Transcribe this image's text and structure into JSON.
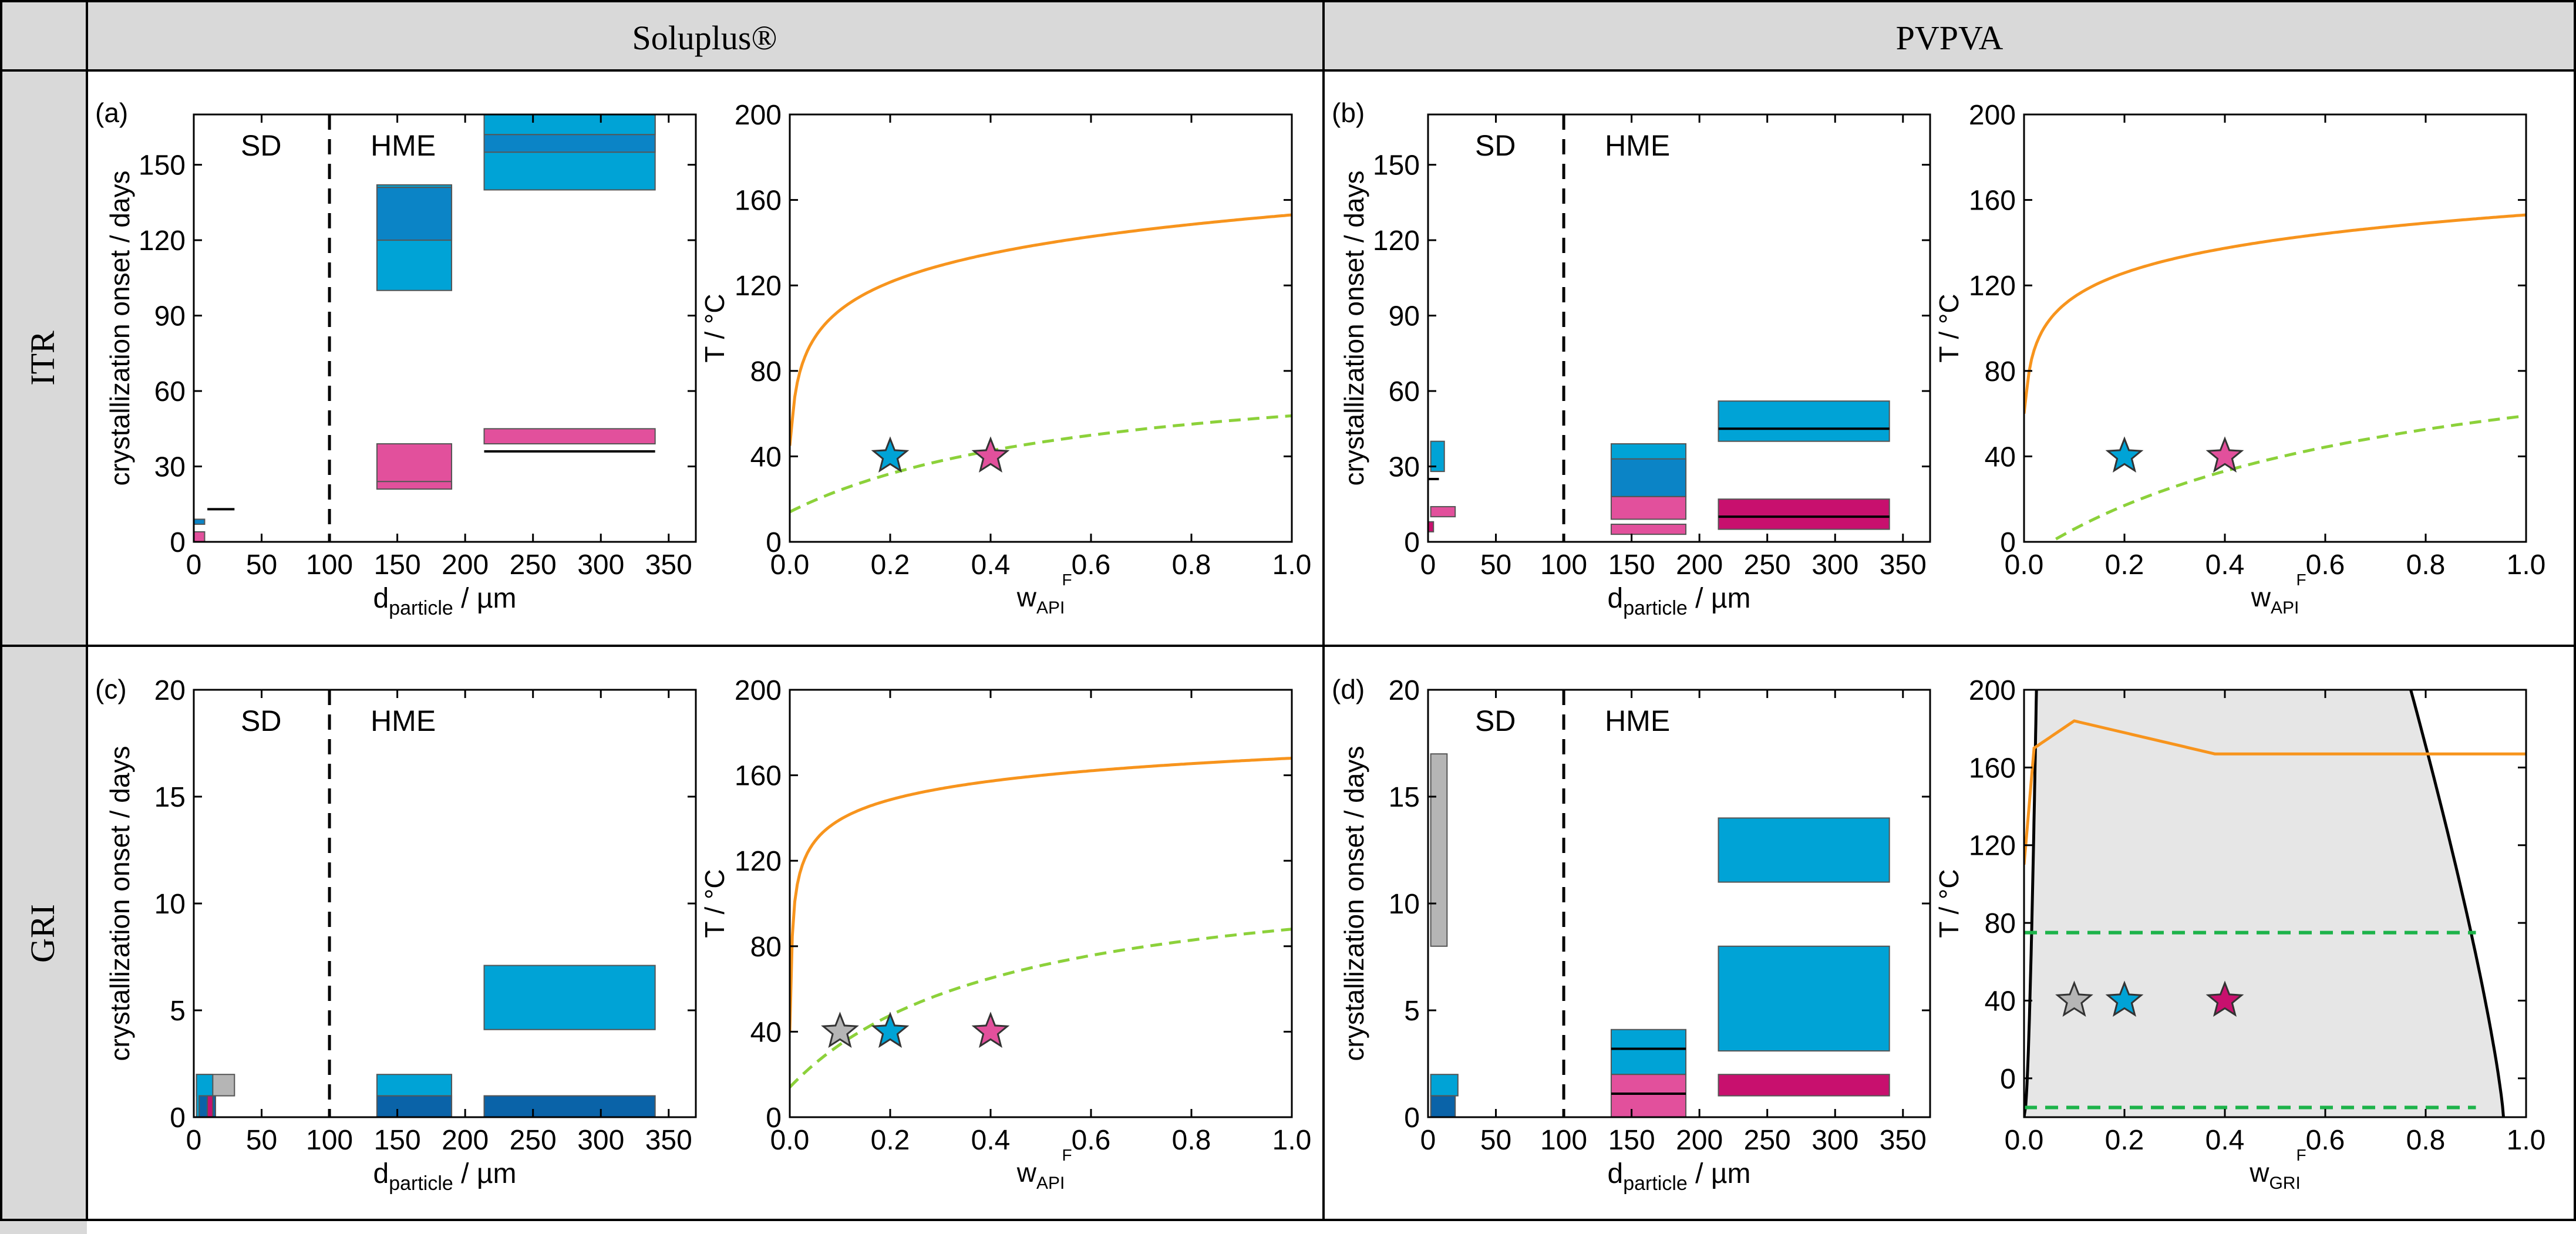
{
  "header": {
    "col_soluplus": "Soluplus®",
    "col_pvpva": "PVPVA",
    "row_itr": "ITR",
    "row_gri": "GRI"
  },
  "colors": {
    "orange": "#F7941D",
    "green": "#8CD13A",
    "green_dark": "#1DB34A",
    "blue_light": "#00A3D6",
    "blue_mid": "#0B84C6",
    "blue_dark": "#0A63A8",
    "pink": "#E2509C",
    "magenta": "#C8106E",
    "gray": "#B5B5B5",
    "region_gray": "#E6E6E6"
  },
  "bar_panels": {
    "a": {
      "label": "(a)",
      "sd_label": "SD",
      "hme_label": "HME",
      "xlabel_main": "d",
      "xlabel_sub": "particle",
      "xlabel_unit": " / µm",
      "ylabel": "crystallization onset / days",
      "xticks": [
        "0",
        "50",
        "100",
        "150",
        "200",
        "250",
        "300",
        "350"
      ],
      "yticks": [
        "0",
        "30",
        "60",
        "90",
        "120",
        "150"
      ],
      "xlim": [
        0,
        370
      ],
      "ylim": [
        0,
        170
      ],
      "divider_x": 100,
      "rects": [
        {
          "x0": 214,
          "x1": 340,
          "y0": 140,
          "y1": 170,
          "color": "blue_light"
        },
        {
          "x0": 214,
          "x1": 340,
          "y0": 155,
          "y1": 170,
          "color": "blue_mid"
        },
        {
          "x0": 214,
          "x1": 340,
          "y0": 162,
          "y1": 170,
          "color": "blue_light"
        },
        {
          "x0": 135,
          "x1": 190,
          "y0": 100,
          "y1": 142,
          "color": "blue_light"
        },
        {
          "x0": 135,
          "x1": 190,
          "y0": 120,
          "y1": 141,
          "color": "blue_mid"
        },
        {
          "x0": 135,
          "x1": 190,
          "y0": 21,
          "y1": 39,
          "color": "pink"
        },
        {
          "x0": 135,
          "x1": 190,
          "y0": 21,
          "y1": 24,
          "color": "pink"
        },
        {
          "x0": 214,
          "x1": 340,
          "y0": 39,
          "y1": 45,
          "color": "pink"
        },
        {
          "x0": 0,
          "x1": 8,
          "y0": 0,
          "y1": 4,
          "color": "pink"
        },
        {
          "x0": 0,
          "x1": 8,
          "y0": 7,
          "y1": 9,
          "color": "blue_mid"
        }
      ],
      "hlines": [
        {
          "x0": 214,
          "x1": 340,
          "y": 36
        },
        {
          "x0": 10,
          "x1": 30,
          "y": 13
        }
      ]
    },
    "b": {
      "label": "(b)",
      "sd_label": "SD",
      "hme_label": "HME",
      "xlabel_main": "d",
      "xlabel_sub": "particle",
      "xlabel_unit": " / µm",
      "ylabel": "crystallization onset / days",
      "xticks": [
        "0",
        "50",
        "100",
        "150",
        "200",
        "250",
        "300",
        "350"
      ],
      "yticks": [
        "0",
        "30",
        "60",
        "90",
        "120",
        "150"
      ],
      "xlim": [
        0,
        370
      ],
      "ylim": [
        0,
        170
      ],
      "divider_x": 100,
      "rects": [
        {
          "x0": 2,
          "x1": 12,
          "y0": 28,
          "y1": 40,
          "color": "blue_light"
        },
        {
          "x0": 2,
          "x1": 20,
          "y0": 10,
          "y1": 14,
          "color": "pink"
        },
        {
          "x0": 0,
          "x1": 4,
          "y0": 4,
          "y1": 8,
          "color": "magenta"
        },
        {
          "x0": 135,
          "x1": 190,
          "y0": 18,
          "y1": 39,
          "color": "blue_light"
        },
        {
          "x0": 135,
          "x1": 190,
          "y0": 18,
          "y1": 33,
          "color": "blue_mid"
        },
        {
          "x0": 135,
          "x1": 190,
          "y0": 9,
          "y1": 18,
          "color": "pink"
        },
        {
          "x0": 135,
          "x1": 190,
          "y0": 3,
          "y1": 7,
          "color": "pink"
        },
        {
          "x0": 214,
          "x1": 340,
          "y0": 40,
          "y1": 56,
          "color": "blue_light"
        },
        {
          "x0": 214,
          "x1": 340,
          "y0": 5,
          "y1": 17,
          "color": "magenta"
        }
      ],
      "hlines": [
        {
          "x0": 214,
          "x1": 340,
          "y": 45
        },
        {
          "x0": 214,
          "x1": 340,
          "y": 10
        },
        {
          "x0": 0,
          "x1": 8,
          "y": 25
        }
      ]
    },
    "c": {
      "label": "(c)",
      "sd_label": "SD",
      "hme_label": "HME",
      "xlabel_main": "d",
      "xlabel_sub": "particle",
      "xlabel_unit": " / µm",
      "ylabel": "crystallization onset / days",
      "xticks": [
        "0",
        "50",
        "100",
        "150",
        "200",
        "250",
        "300",
        "350"
      ],
      "yticks": [
        "0",
        "5",
        "10",
        "15",
        "20"
      ],
      "xlim": [
        0,
        370
      ],
      "ylim": [
        0,
        20
      ],
      "divider_x": 100,
      "rects": [
        {
          "x0": 2,
          "x1": 30,
          "y0": 1,
          "y1": 2,
          "color": "gray"
        },
        {
          "x0": 2,
          "x1": 14,
          "y0": 0,
          "y1": 2,
          "color": "blue_light"
        },
        {
          "x0": 4,
          "x1": 16,
          "y0": 0,
          "y1": 1,
          "color": "blue_dark"
        },
        {
          "x0": 10,
          "x1": 14,
          "y0": 0,
          "y1": 1,
          "color": "magenta"
        },
        {
          "x0": 135,
          "x1": 190,
          "y0": 0,
          "y1": 2,
          "color": "blue_light"
        },
        {
          "x0": 135,
          "x1": 190,
          "y0": 0,
          "y1": 1,
          "color": "blue_dark"
        },
        {
          "x0": 214,
          "x1": 340,
          "y0": 4.1,
          "y1": 7.1,
          "color": "blue_light"
        },
        {
          "x0": 214,
          "x1": 340,
          "y0": 0,
          "y1": 1,
          "color": "blue_dark"
        }
      ],
      "hlines": []
    },
    "d": {
      "label": "(d)",
      "sd_label": "SD",
      "hme_label": "HME",
      "xlabel_main": "d",
      "xlabel_sub": "particle",
      "xlabel_unit": " / µm",
      "ylabel": "crystallization onset / days",
      "xticks": [
        "0",
        "50",
        "100",
        "150",
        "200",
        "250",
        "300",
        "350"
      ],
      "yticks": [
        "0",
        "5",
        "10",
        "15",
        "20"
      ],
      "xlim": [
        0,
        370
      ],
      "ylim": [
        0,
        20
      ],
      "divider_x": 100,
      "rects": [
        {
          "x0": 2,
          "x1": 14,
          "y0": 8,
          "y1": 17,
          "color": "gray"
        },
        {
          "x0": 2,
          "x1": 22,
          "y0": 1,
          "y1": 2,
          "color": "blue_light"
        },
        {
          "x0": 2,
          "x1": 20,
          "y0": 0,
          "y1": 1,
          "color": "blue_dark"
        },
        {
          "x0": 135,
          "x1": 190,
          "y0": 2,
          "y1": 4.1,
          "color": "blue_light"
        },
        {
          "x0": 135,
          "x1": 190,
          "y0": 0,
          "y1": 2,
          "color": "pink"
        },
        {
          "x0": 214,
          "x1": 340,
          "y0": 11,
          "y1": 14,
          "color": "blue_light"
        },
        {
          "x0": 214,
          "x1": 340,
          "y0": 3.1,
          "y1": 8,
          "color": "blue_light"
        },
        {
          "x0": 214,
          "x1": 340,
          "y0": 1,
          "y1": 2,
          "color": "magenta"
        }
      ],
      "hlines": [
        {
          "x0": 135,
          "x1": 190,
          "y": 3.2
        },
        {
          "x0": 135,
          "x1": 190,
          "y": 1.1
        }
      ]
    }
  },
  "phase_panels": {
    "a": {
      "ylabel": "T / °C",
      "xlabel_main": "w",
      "xlabel_sup": "F",
      "xlabel_sub": "API",
      "xticks": [
        "0.0",
        "0.2",
        "0.4",
        "0.6",
        "0.8",
        "1.0"
      ],
      "yticks": [
        "0",
        "40",
        "80",
        "120",
        "160",
        "200"
      ],
      "xlim": [
        0,
        1
      ],
      "ylim": [
        0,
        200
      ],
      "solubility": {
        "type": "log",
        "y0": 45,
        "yend": 153,
        "x0": 0.002
      },
      "glass": {
        "type": "gt",
        "tgA": 59,
        "tgP": 14,
        "k": 0.38
      },
      "stars": [
        {
          "x": 0.2,
          "y": 40,
          "color": "blue_light"
        },
        {
          "x": 0.4,
          "y": 40,
          "color": "pink"
        }
      ]
    },
    "b": {
      "ylabel": "T / °C",
      "xlabel_main": "w",
      "xlabel_sup": "F",
      "xlabel_sub": "API",
      "xticks": [
        "0.0",
        "0.2",
        "0.4",
        "0.6",
        "0.8",
        "1.0"
      ],
      "yticks": [
        "0",
        "40",
        "80",
        "120",
        "160",
        "200"
      ],
      "xlim": [
        0,
        1
      ],
      "ylim": [
        0,
        200
      ],
      "solubility": {
        "type": "log",
        "y0": 60,
        "yend": 153,
        "x0": 0.002
      },
      "glass": {
        "type": "gt",
        "tgA": 59,
        "tgP": -8,
        "k": 0.42
      },
      "stars": [
        {
          "x": 0.2,
          "y": 40,
          "color": "blue_light"
        },
        {
          "x": 0.4,
          "y": 40,
          "color": "pink"
        }
      ]
    },
    "c": {
      "ylabel": "T / °C",
      "xlabel_main": "w",
      "xlabel_sup": "F",
      "xlabel_sub": "API",
      "xticks": [
        "0.0",
        "0.2",
        "0.4",
        "0.6",
        "0.8",
        "1.0"
      ],
      "yticks": [
        "0",
        "40",
        "80",
        "120",
        "160",
        "200"
      ],
      "xlim": [
        0,
        1
      ],
      "ylim": [
        0,
        200
      ],
      "solubility": {
        "type": "log2",
        "y0": 40,
        "yend": 168,
        "x0": 0.002
      },
      "glass": {
        "type": "gt",
        "tgA": 88,
        "tgP": 14,
        "k": 0.3
      },
      "stars": [
        {
          "x": 0.1,
          "y": 40,
          "color": "gray"
        },
        {
          "x": 0.2,
          "y": 40,
          "color": "blue_light"
        },
        {
          "x": 0.4,
          "y": 40,
          "color": "pink"
        }
      ]
    },
    "d": {
      "ylabel": "T / °C",
      "xlabel_main": "w",
      "xlabel_sup": "F",
      "xlabel_sub": "GRI",
      "xticks": [
        "0.0",
        "0.2",
        "0.4",
        "0.6",
        "0.8",
        "1.0"
      ],
      "yticks": [
        "0",
        "40",
        "80",
        "120",
        "160",
        "200"
      ],
      "xlim": [
        0,
        1
      ],
      "ylim": [
        -20,
        200
      ],
      "solubility": {
        "type": "hump"
      },
      "glass_lines": [
        75,
        -15
      ],
      "stars": [
        {
          "x": 0.1,
          "y": 40,
          "color": "gray"
        },
        {
          "x": 0.2,
          "y": 40,
          "color": "blue_light"
        },
        {
          "x": 0.4,
          "y": 40,
          "color": "magenta"
        }
      ]
    }
  }
}
